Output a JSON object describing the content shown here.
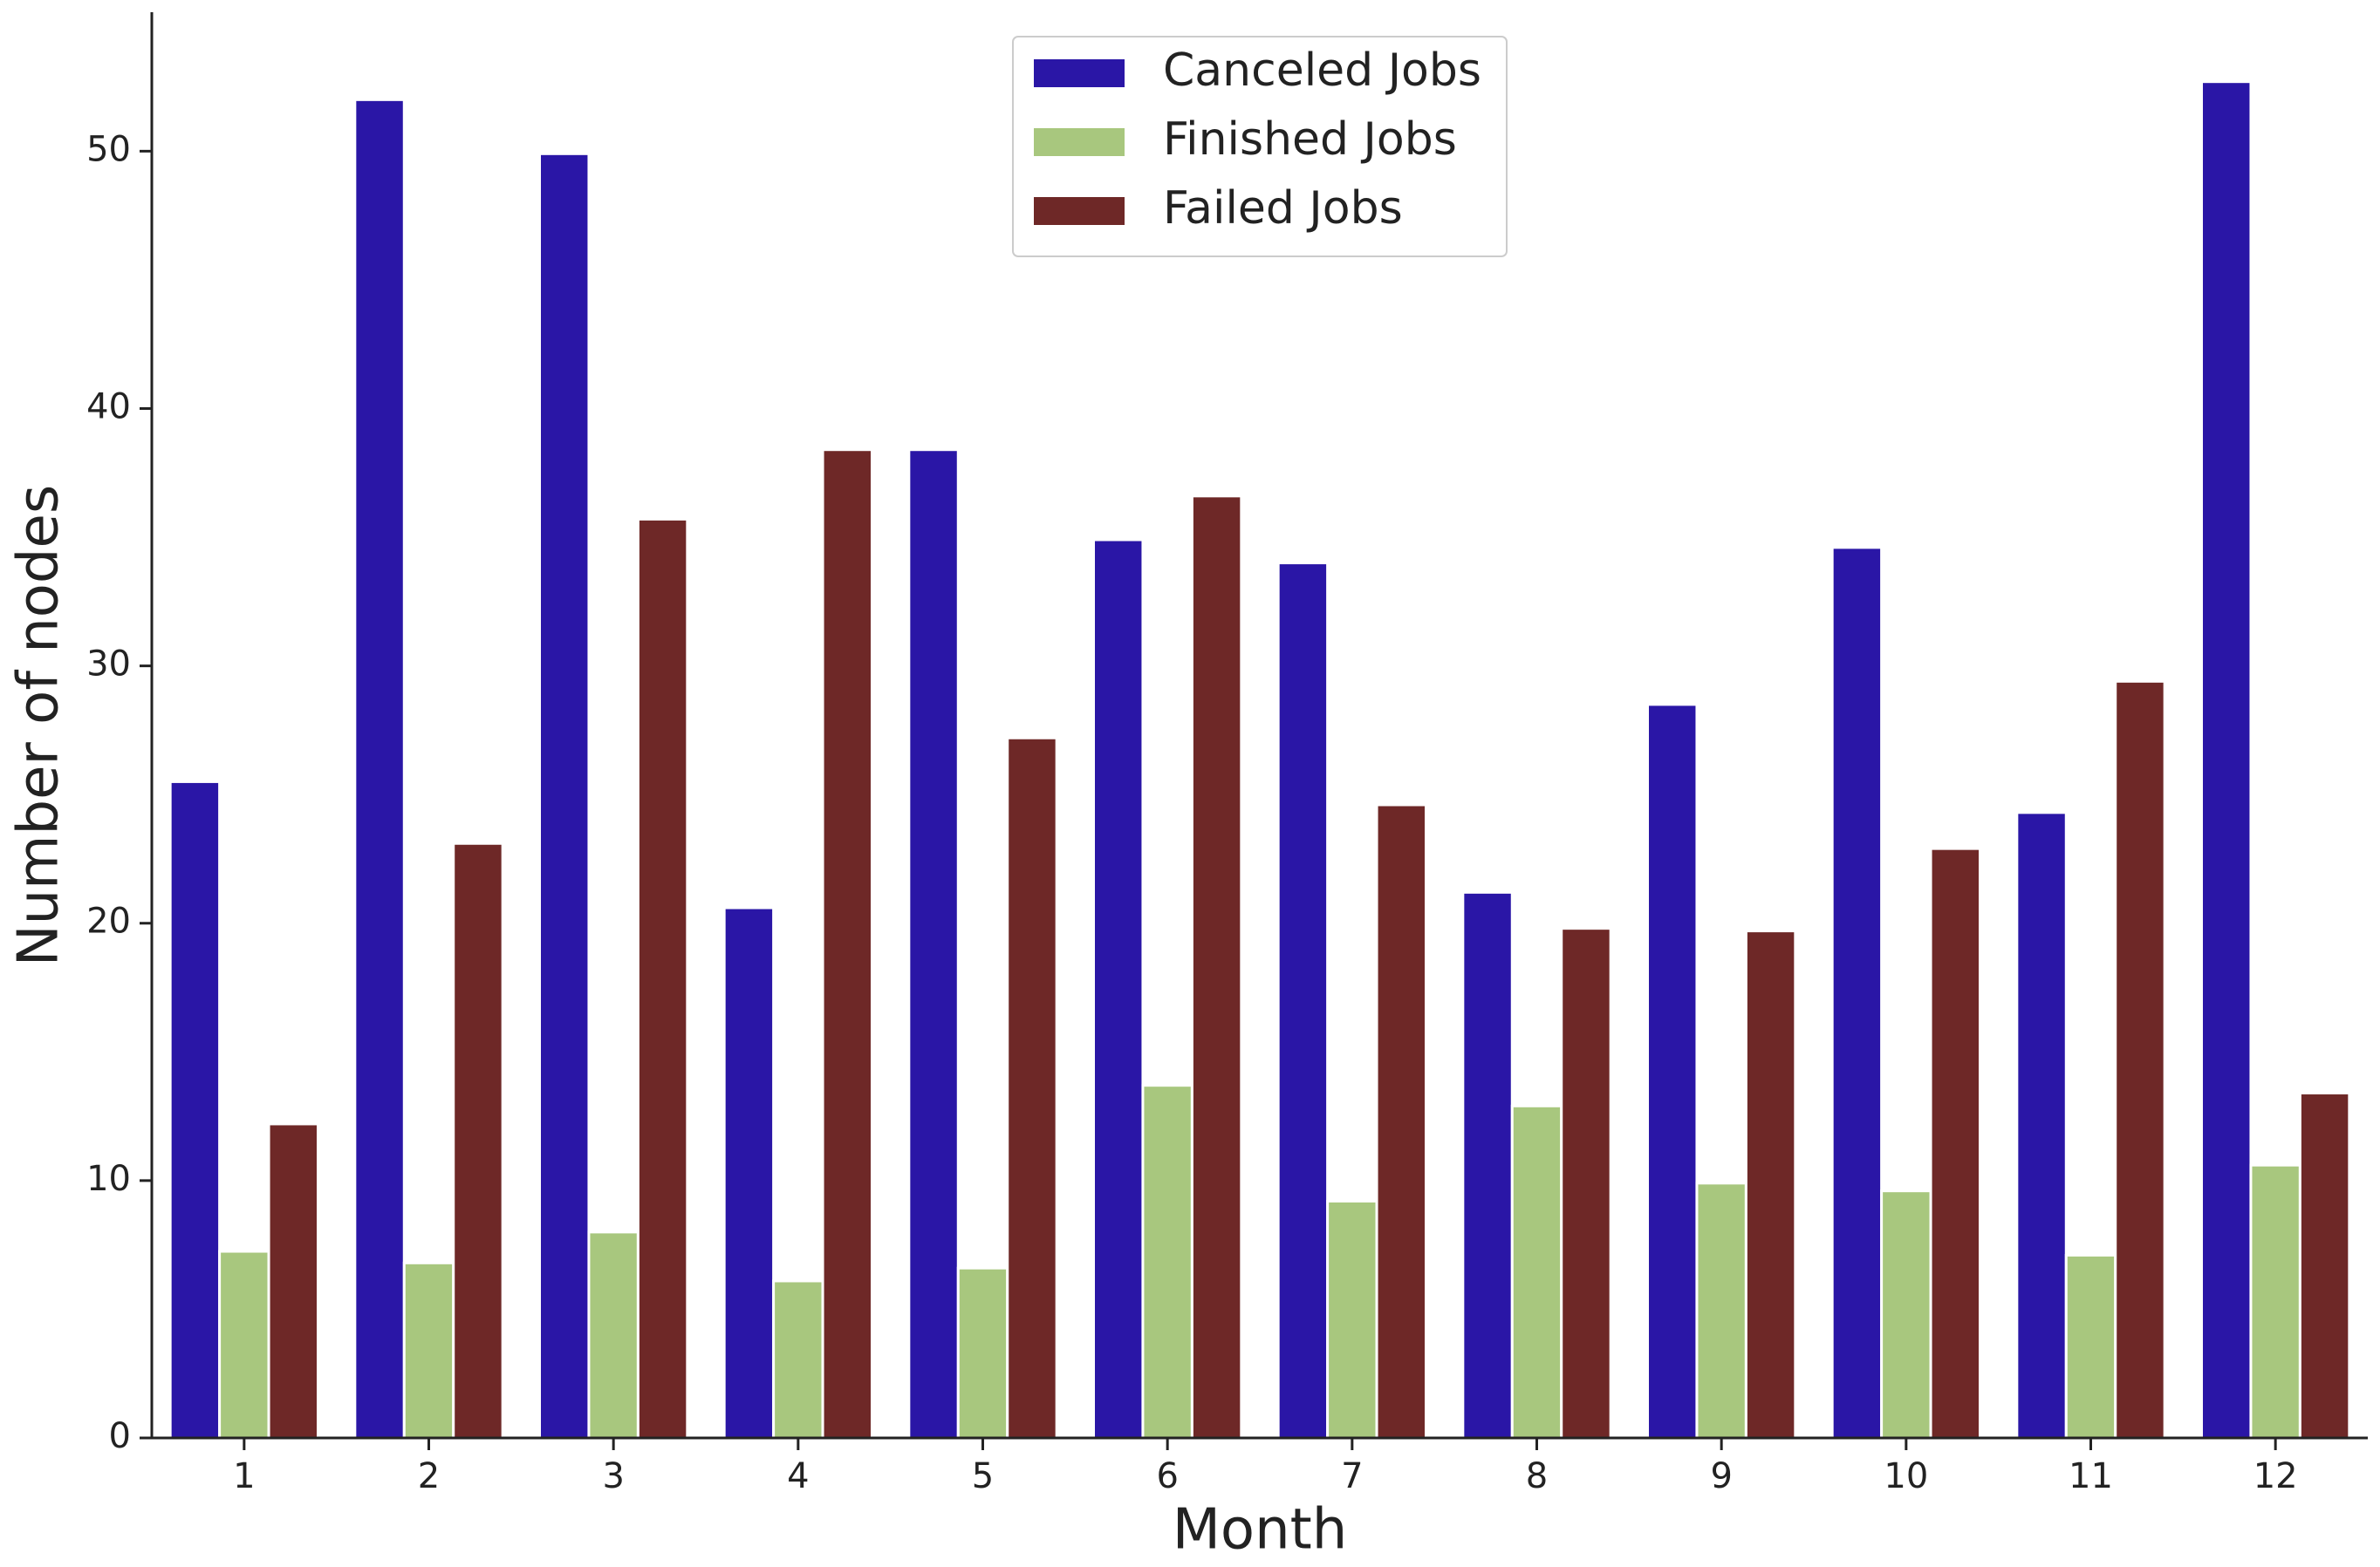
{
  "chart_data": {
    "type": "bar",
    "x_label": "Month",
    "y_label": "Number of nodes",
    "categories": [
      "1",
      "2",
      "3",
      "4",
      "5",
      "6",
      "7",
      "8",
      "9",
      "10",
      "11",
      "12"
    ],
    "series": [
      {
        "name": "Canceled Jobs",
        "color": "#2a16a6",
        "values": [
          25.5,
          52.0,
          49.9,
          20.6,
          38.4,
          34.9,
          34.0,
          21.2,
          28.5,
          34.6,
          24.3,
          52.7
        ]
      },
      {
        "name": "Finished Jobs",
        "color": "#a8c77e",
        "values": [
          7.25,
          6.8,
          8.0,
          6.1,
          6.6,
          13.7,
          9.2,
          12.9,
          9.9,
          9.6,
          7.1,
          10.6
        ]
      },
      {
        "name": "Failed Jobs",
        "color": "#6e2827",
        "values": [
          12.2,
          23.1,
          35.7,
          38.4,
          27.2,
          36.6,
          24.6,
          19.8,
          19.7,
          22.9,
          29.4,
          13.4
        ]
      }
    ],
    "ylim": [
      0,
      55.4
    ],
    "yticks": [
      0,
      10,
      20,
      30,
      40,
      50
    ],
    "grid": false,
    "legend": "upper center"
  }
}
